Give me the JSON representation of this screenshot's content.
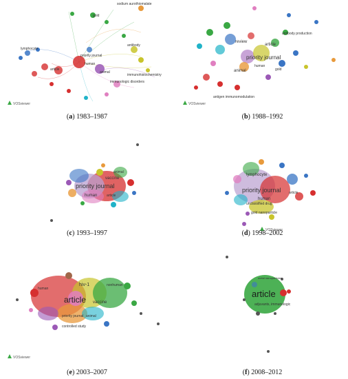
{
  "logo_text": "VOSviewer",
  "colors": {
    "red": "#d62f2f",
    "green": "#3aa844",
    "blue": "#3a75c4",
    "yellow": "#c8c42c",
    "purple": "#9b59b6",
    "cyan": "#20b3c8",
    "orange": "#e89a3c",
    "pink": "#e07fc0",
    "brown": "#a0674a",
    "lightgreen": "#8fd18a"
  },
  "panels": [
    {
      "id": "a",
      "letter": "a",
      "period": "1983–1987",
      "labels": [
        "priority journal",
        "human",
        "article",
        "animal",
        "gold",
        "immunologic disorders",
        "lymphocyte",
        "antibody",
        "immunohistochemistry",
        "sodium aurothiomalate"
      ]
    },
    {
      "id": "b",
      "letter": "b",
      "period": "1988–1992",
      "labels": [
        "priority journal",
        "review",
        "animal",
        "article",
        "human",
        "gold",
        "antibody production",
        "antigen immunomodulation"
      ]
    },
    {
      "id": "c",
      "letter": "c",
      "period": "1993–1997",
      "labels": [
        "priority journal",
        "vaccine",
        "human",
        "article",
        "animal"
      ]
    },
    {
      "id": "d",
      "letter": "d",
      "period": "1998–2002",
      "labels": [
        "priority journal",
        "lymphocyte",
        "human",
        "unclassified drug",
        "article",
        "gold nanoparticle"
      ]
    },
    {
      "id": "e",
      "letter": "e",
      "period": "2003–2007",
      "labels": [
        "article",
        "hiv-1",
        "priority journal",
        "vaccine",
        "human",
        "nonhuman",
        "animal",
        "controlled study"
      ]
    },
    {
      "id": "f",
      "letter": "f",
      "period": "2008–2012",
      "labels": [
        "article",
        "adjuvants, immunologic",
        "metal nanoparticles"
      ]
    }
  ]
}
